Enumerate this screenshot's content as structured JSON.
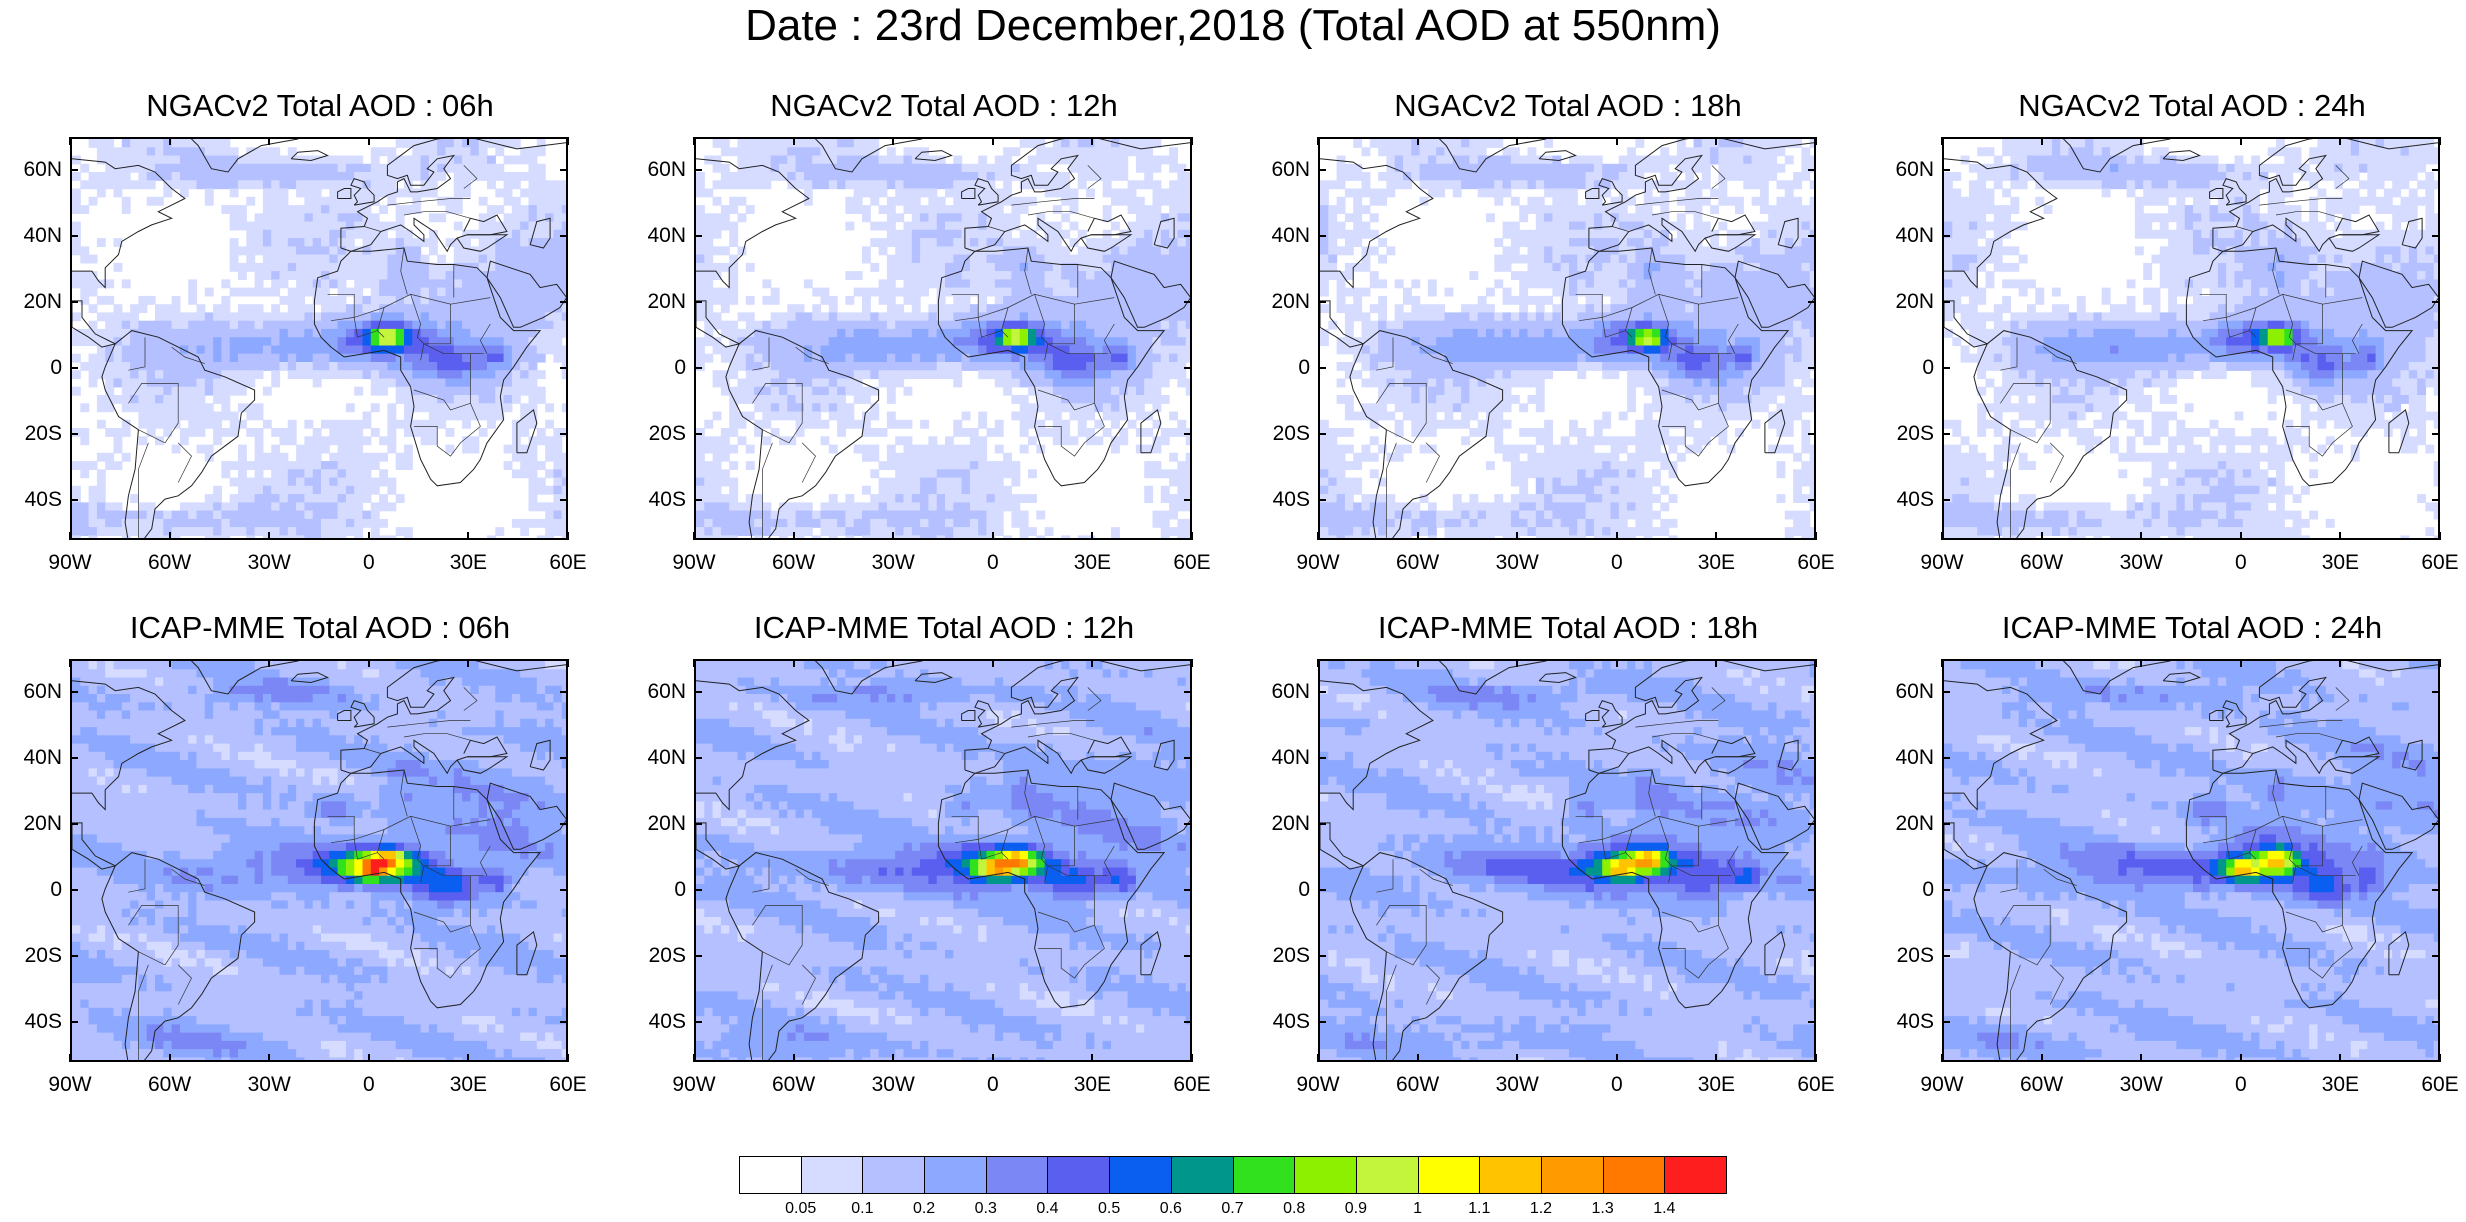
{
  "title": "Date : 23rd December,2018 (Total AOD at 550nm)",
  "panels": [
    {
      "title": "NGACv2 Total AOD : 06h",
      "model": "ngac",
      "hour": 6
    },
    {
      "title": "NGACv2 Total AOD : 12h",
      "model": "ngac",
      "hour": 12
    },
    {
      "title": "NGACv2 Total AOD : 18h",
      "model": "ngac",
      "hour": 18
    },
    {
      "title": "NGACv2 Total AOD : 24h",
      "model": "ngac",
      "hour": 24
    },
    {
      "title": "ICAP-MME Total AOD : 06h",
      "model": "icap",
      "hour": 6
    },
    {
      "title": "ICAP-MME Total AOD : 12h",
      "model": "icap",
      "hour": 12
    },
    {
      "title": "ICAP-MME Total AOD : 18h",
      "model": "icap",
      "hour": 18
    },
    {
      "title": "ICAP-MME Total AOD : 24h",
      "model": "icap",
      "hour": 24
    }
  ],
  "lat_labels": [
    "60N",
    "40N",
    "20N",
    "0",
    "20S",
    "40S"
  ],
  "lon_labels": [
    "90W",
    "60W",
    "30W",
    "0",
    "30E",
    "60E"
  ],
  "colorbar": {
    "levels": [
      "0.05",
      "0.1",
      "0.2",
      "0.3",
      "0.4",
      "0.5",
      "0.6",
      "0.7",
      "0.8",
      "0.9",
      "1",
      "1.1",
      "1.2",
      "1.3",
      "1.4"
    ],
    "colors": [
      "#ffffff",
      "#d6dcff",
      "#b4c0ff",
      "#8da9ff",
      "#7a87f5",
      "#5a5ff0",
      "#0a5ff0",
      "#00968c",
      "#32e11e",
      "#8cf000",
      "#c3f53c",
      "#ffff00",
      "#ffc300",
      "#ff9b00",
      "#ff7800",
      "#ff1e1e"
    ]
  }
}
